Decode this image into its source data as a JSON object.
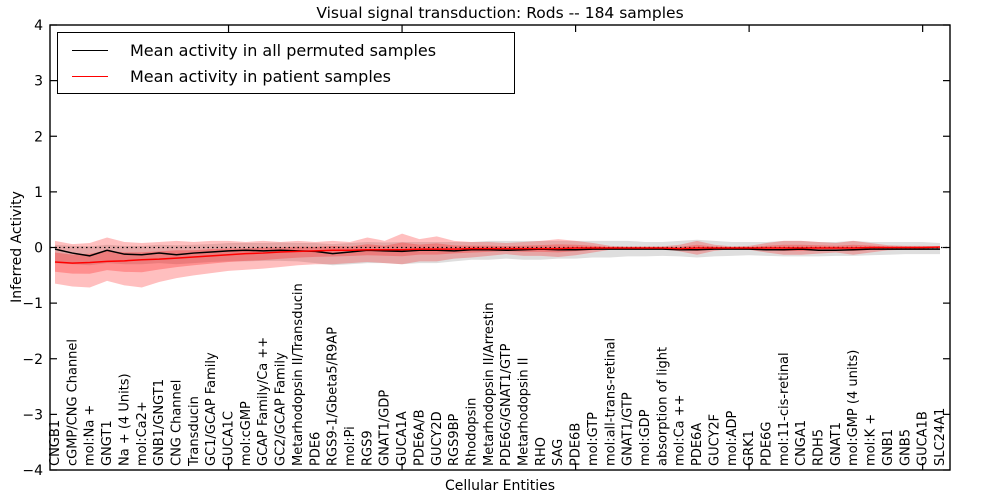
{
  "title": "Visual signal transduction: Rods -- 184 samples",
  "legend": {
    "entries": [
      {
        "label": "Mean activity in all permuted samples",
        "color": "#000000"
      },
      {
        "label": "Mean activity in patient samples",
        "color": "#ff0000"
      }
    ],
    "position": "upper left"
  },
  "chart_data": {
    "type": "line",
    "title": "Visual signal transduction: Rods -- 184 samples",
    "xlabel": "Cellular Entities",
    "ylabel": "Inferred Activity",
    "ylim": [
      -4,
      4
    ],
    "yticks": [
      -4,
      -3,
      -2,
      -1,
      0,
      1,
      2,
      3,
      4
    ],
    "grid": false,
    "zero_line": {
      "style": "dotted",
      "color": "#000000",
      "y": 0
    },
    "categories": [
      "CNGB1",
      "cGMP/CNG Channel",
      "mol:Na +",
      "GNGT1",
      "Na + (4 Units)",
      "mol:Ca2+",
      "GNB1/GNGT1",
      "CNG Channel",
      "Transducin",
      "GC1/GCAP Family",
      "GUCA1C",
      "mol:cGMP",
      "GCAP Family/Ca ++",
      "GC2/GCAP Family",
      "Metarhodopsin II/Transducin",
      "PDE6",
      "RGS9-1/Gbeta5/R9AP",
      "mol:Pi",
      "RGS9",
      "GNAT1/GDP",
      "GUCA1A",
      "PDE6A/B",
      "GUCY2D",
      "RGS9BP",
      "Rhodopsin",
      "Metarhodopsin II/Arrestin",
      "PDE6G/GNAT1/GTP",
      "Metarhodopsin II",
      "RHO",
      "SAG",
      "PDE6B",
      "mol:GTP",
      "mol:all-trans-retinal",
      "GNAT1/GTP",
      "mol:GDP",
      "absorption of light",
      "mol:Ca ++",
      "PDE6A",
      "GUCY2F",
      "mol:ADP",
      "GRK1",
      "PDE6G",
      "mol:11-cis-retinal",
      "CNGA1",
      "RDH5",
      "GNAT1",
      "mol:GMP (4 units)",
      "mol:K +",
      "GNB1",
      "GNB5",
      "GUCA1B",
      "SLC24A1"
    ],
    "series": [
      {
        "name": "Mean activity in all permuted samples",
        "color": "#000000",
        "band_color": "rgba(0,0,0,0.13)",
        "values": [
          -0.03,
          -0.1,
          -0.15,
          -0.05,
          -0.12,
          -0.13,
          -0.1,
          -0.13,
          -0.1,
          -0.08,
          -0.06,
          -0.05,
          -0.06,
          -0.05,
          -0.06,
          -0.07,
          -0.11,
          -0.08,
          -0.05,
          -0.06,
          -0.07,
          -0.05,
          -0.05,
          -0.06,
          -0.04,
          -0.04,
          -0.05,
          -0.04,
          -0.03,
          -0.04,
          -0.04,
          -0.03,
          -0.03,
          -0.03,
          -0.03,
          -0.03,
          -0.04,
          -0.04,
          -0.03,
          -0.03,
          -0.03,
          -0.04,
          -0.04,
          -0.03,
          -0.05,
          -0.05,
          -0.04,
          -0.03,
          -0.03,
          -0.03,
          -0.03,
          -0.03
        ],
        "band_hi": [
          0.05,
          0.03,
          0.02,
          0.05,
          0.03,
          0.03,
          0.05,
          0.04,
          0.05,
          0.06,
          0.08,
          0.08,
          0.08,
          0.09,
          0.08,
          0.08,
          0.06,
          0.08,
          0.1,
          0.09,
          0.1,
          0.1,
          0.1,
          0.1,
          0.1,
          0.12,
          0.12,
          0.12,
          0.12,
          0.12,
          0.12,
          0.12,
          0.12,
          0.12,
          0.1,
          0.1,
          0.12,
          0.14,
          0.12,
          0.1,
          0.1,
          0.1,
          0.12,
          0.12,
          0.1,
          0.1,
          0.12,
          0.1,
          0.1,
          0.1,
          0.1,
          0.08
        ],
        "band_lo": [
          -0.28,
          -0.3,
          -0.32,
          -0.28,
          -0.3,
          -0.3,
          -0.28,
          -0.3,
          -0.28,
          -0.26,
          -0.25,
          -0.25,
          -0.24,
          -0.24,
          -0.25,
          -0.28,
          -0.32,
          -0.3,
          -0.28,
          -0.28,
          -0.3,
          -0.28,
          -0.28,
          -0.25,
          -0.22,
          -0.22,
          -0.2,
          -0.22,
          -0.22,
          -0.2,
          -0.2,
          -0.18,
          -0.18,
          -0.16,
          -0.16,
          -0.15,
          -0.16,
          -0.18,
          -0.16,
          -0.15,
          -0.14,
          -0.15,
          -0.16,
          -0.16,
          -0.16,
          -0.15,
          -0.15,
          -0.14,
          -0.13,
          -0.12,
          -0.12,
          -0.12
        ]
      },
      {
        "name": "Mean activity in patient samples",
        "color": "#ff0000",
        "band_color": "rgba(255,0,0,0.25)",
        "values": [
          -0.26,
          -0.28,
          -0.27,
          -0.25,
          -0.24,
          -0.22,
          -0.21,
          -0.19,
          -0.17,
          -0.15,
          -0.13,
          -0.11,
          -0.1,
          -0.08,
          -0.07,
          -0.06,
          -0.05,
          -0.05,
          -0.04,
          -0.04,
          -0.04,
          -0.03,
          -0.03,
          -0.03,
          -0.02,
          -0.02,
          -0.02,
          -0.02,
          -0.02,
          -0.02,
          -0.01,
          -0.01,
          -0.01,
          -0.01,
          -0.01,
          -0.01,
          -0.02,
          -0.01,
          -0.01,
          -0.01,
          -0.01,
          -0.01,
          -0.01,
          -0.01,
          -0.01,
          -0.01,
          -0.01,
          0.0,
          0.0,
          0.0,
          0.0,
          0.01
        ],
        "band_hi": [
          0.12,
          0.06,
          0.08,
          0.18,
          0.1,
          0.08,
          0.1,
          0.12,
          0.1,
          0.12,
          0.12,
          0.1,
          0.12,
          0.1,
          0.12,
          0.1,
          0.12,
          0.1,
          0.18,
          0.12,
          0.25,
          0.15,
          0.2,
          0.12,
          0.1,
          0.1,
          0.08,
          0.1,
          0.12,
          0.15,
          0.12,
          0.08,
          0.03,
          0.02,
          0.02,
          0.02,
          0.05,
          0.12,
          0.05,
          0.02,
          0.03,
          0.08,
          0.12,
          0.12,
          0.1,
          0.08,
          0.12,
          0.08,
          0.04,
          0.03,
          0.03,
          0.02
        ],
        "band_lo": [
          -0.65,
          -0.7,
          -0.72,
          -0.6,
          -0.68,
          -0.72,
          -0.62,
          -0.55,
          -0.5,
          -0.46,
          -0.42,
          -0.4,
          -0.38,
          -0.35,
          -0.32,
          -0.3,
          -0.3,
          -0.28,
          -0.26,
          -0.28,
          -0.3,
          -0.25,
          -0.25,
          -0.2,
          -0.18,
          -0.15,
          -0.12,
          -0.15,
          -0.15,
          -0.17,
          -0.14,
          -0.09,
          -0.04,
          -0.03,
          -0.03,
          -0.03,
          -0.07,
          -0.13,
          -0.06,
          -0.03,
          -0.04,
          -0.09,
          -0.13,
          -0.13,
          -0.11,
          -0.09,
          -0.13,
          -0.09,
          -0.05,
          -0.04,
          -0.04,
          -0.03
        ]
      }
    ]
  }
}
